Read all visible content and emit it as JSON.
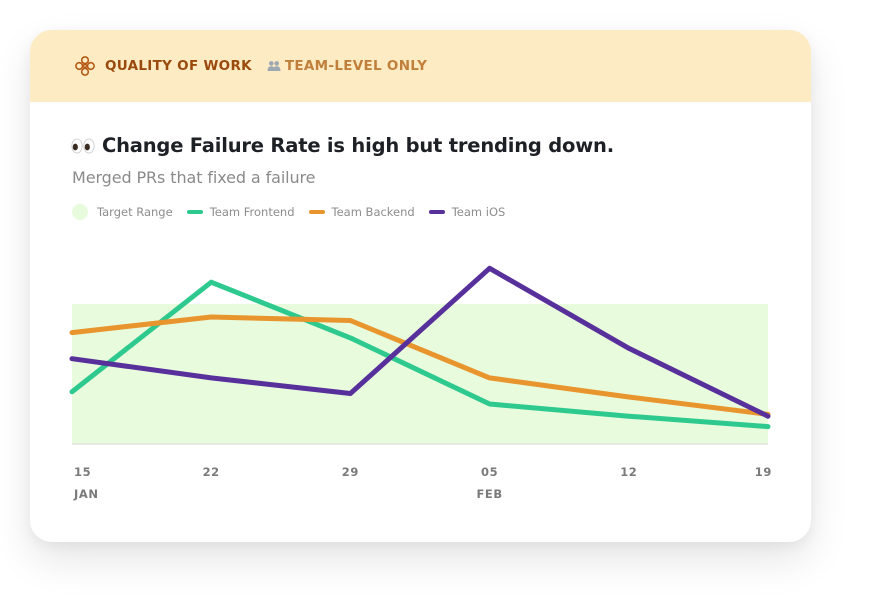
{
  "header": {
    "icon": "flower-icon",
    "label": "QUALITY OF WORK",
    "sub_icon": "people-icon",
    "sub_label": "TEAM-LEVEL ONLY"
  },
  "card": {
    "title_icon": "eyes-icon",
    "title": "Change Failure Rate is high but trending down.",
    "subtitle": "Merged PRs that fixed a failure"
  },
  "colors": {
    "header_bg": "#fdebc3",
    "target": "#e8fbdc",
    "frontend": "#2ec98f",
    "backend": "#e8952e",
    "ios": "#57309b"
  },
  "chart_data": {
    "type": "line",
    "x_ticks": [
      {
        "label": "15",
        "month": "JAN"
      },
      {
        "label": "22",
        "month": ""
      },
      {
        "label": "29",
        "month": ""
      },
      {
        "label": "05",
        "month": "FEB"
      },
      {
        "label": "12",
        "month": ""
      },
      {
        "label": "19",
        "month": ""
      }
    ],
    "ylim": [
      0,
      1
    ],
    "target_range": {
      "name": "Target Range",
      "min": 0,
      "max": 0.805
    },
    "series": [
      {
        "name": "Team Frontend",
        "color": "#2ec98f",
        "values": [
          0.3,
          0.93,
          0.61,
          0.23,
          0.16,
          0.1
        ]
      },
      {
        "name": "Team Backend",
        "color": "#e8952e",
        "values": [
          0.64,
          0.73,
          0.71,
          0.38,
          0.27,
          0.17
        ]
      },
      {
        "name": "Team iOS",
        "color": "#57309b",
        "values": [
          0.49,
          0.38,
          0.29,
          1.01,
          0.55,
          0.16
        ]
      }
    ],
    "grid": false,
    "legend_position": "top-left"
  }
}
